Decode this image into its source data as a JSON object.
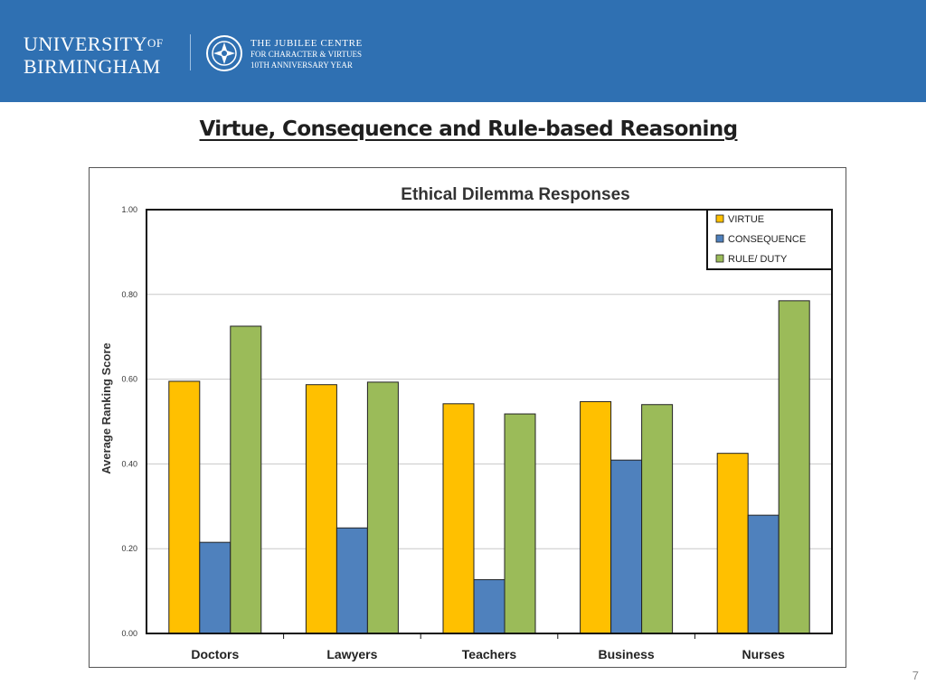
{
  "header": {
    "university_line1": "UNIVERSITY",
    "university_of": "OF",
    "university_line2": "BIRMINGHAM",
    "jubilee_line1": "THE JUBILEE CENTRE",
    "jubilee_line2": "FOR CHARACTER & VIRTUES",
    "jubilee_line3": "10TH ANNIVERSARY YEAR",
    "background_color": "#2f70b2"
  },
  "slide": {
    "title": "Virtue, Consequence and Rule-based Reasoning",
    "page_number": "7"
  },
  "chart_data": {
    "type": "bar",
    "title": "Ethical Dilemma Responses",
    "xlabel": "",
    "ylabel": "Average Ranking Score",
    "categories": [
      "Doctors",
      "Lawyers",
      "Teachers",
      "Business",
      "Nurses"
    ],
    "series": [
      {
        "name": "VIRTUE",
        "color": "#ffc000",
        "values": [
          0.595,
          0.587,
          0.542,
          0.547,
          0.425
        ]
      },
      {
        "name": "CONSEQUENCE",
        "color": "#4f81bd",
        "values": [
          0.215,
          0.249,
          0.127,
          0.409,
          0.279
        ]
      },
      {
        "name": "RULE/ DUTY",
        "color": "#9bbb59",
        "values": [
          0.725,
          0.593,
          0.518,
          0.54,
          0.785
        ]
      }
    ],
    "ylim": [
      0,
      1
    ],
    "yticks": [
      "0.00",
      "0.20",
      "0.40",
      "0.60",
      "0.80",
      "1.00"
    ],
    "ytick_values": [
      0,
      0.2,
      0.4,
      0.6,
      0.8,
      1.0
    ],
    "grid": true,
    "legend_position": "top-right"
  }
}
